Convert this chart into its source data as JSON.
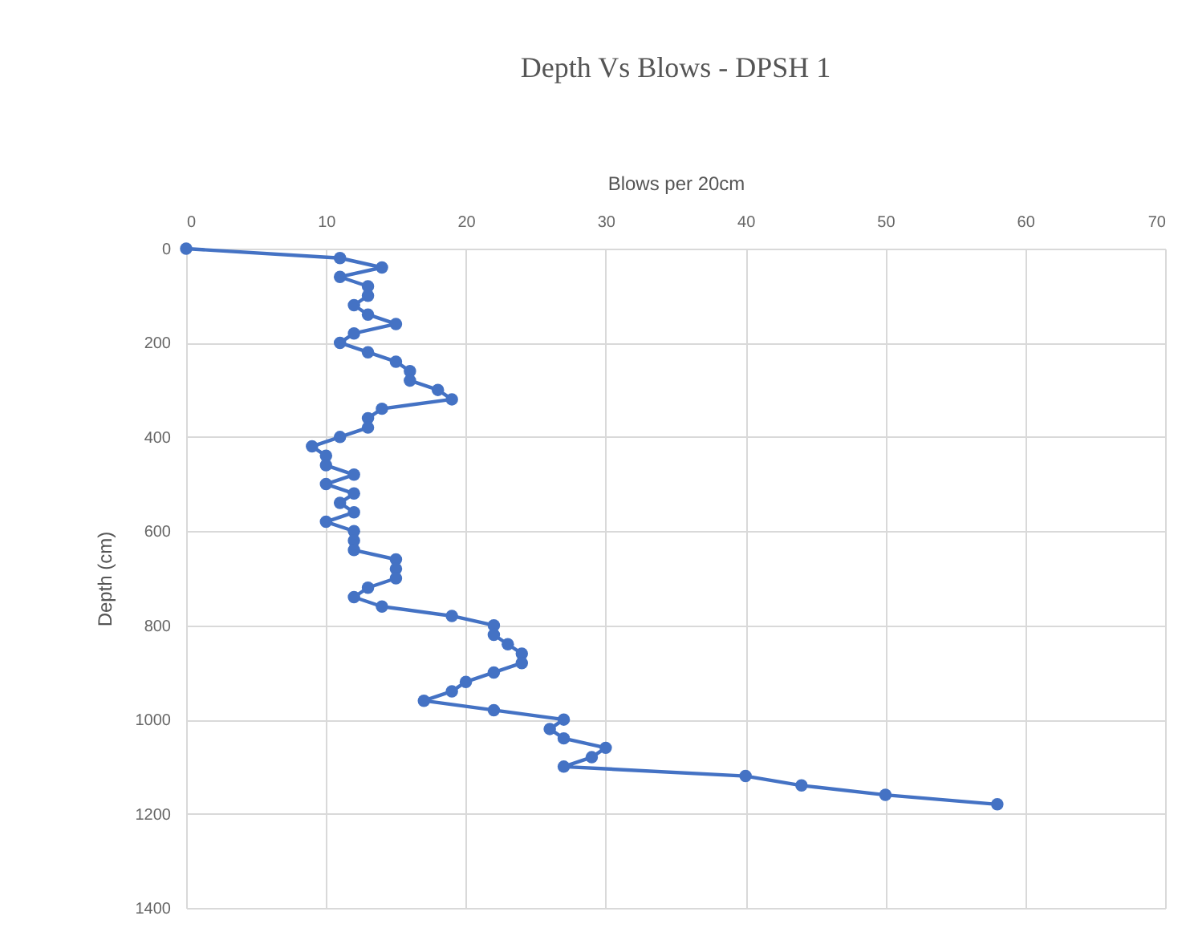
{
  "chart_data": {
    "type": "line",
    "title": "Depth Vs  Blows - DPSH 1",
    "xlabel": "Blows per 20cm",
    "ylabel": "Depth (cm)",
    "x": [
      0,
      11,
      14,
      11,
      13,
      13,
      12,
      13,
      15,
      12,
      11,
      13,
      15,
      16,
      16,
      18,
      19,
      14,
      13,
      13,
      11,
      9,
      10,
      10,
      12,
      10,
      12,
      11,
      12,
      10,
      12,
      12,
      12,
      15,
      15,
      15,
      13,
      12,
      14,
      19,
      22,
      22,
      23,
      24,
      24,
      22,
      20,
      19,
      17,
      22,
      27,
      26,
      27,
      30,
      29,
      27,
      40,
      44,
      50,
      58
    ],
    "series": [
      {
        "color": "#4472c4",
        "values": [
          0,
          20,
          40,
          60,
          80,
          100,
          120,
          140,
          160,
          180,
          200,
          220,
          240,
          260,
          280,
          300,
          320,
          340,
          360,
          380,
          400,
          420,
          440,
          460,
          480,
          500,
          520,
          540,
          560,
          580,
          600,
          620,
          640,
          660,
          680,
          700,
          720,
          740,
          760,
          780,
          800,
          820,
          840,
          860,
          880,
          900,
          920,
          940,
          960,
          980,
          1000,
          1020,
          1040,
          1060,
          1080,
          1100,
          1120,
          1140,
          1160,
          1180
        ]
      }
    ],
    "xlim": [
      0,
      70
    ],
    "xticks": [
      0,
      10,
      20,
      30,
      40,
      50,
      60,
      70
    ],
    "ylim": [
      1400,
      0
    ],
    "yticks": [
      0,
      200,
      400,
      600,
      800,
      1000,
      1200,
      1400
    ],
    "grid": true,
    "marker": "circle",
    "line_style": "solid"
  }
}
